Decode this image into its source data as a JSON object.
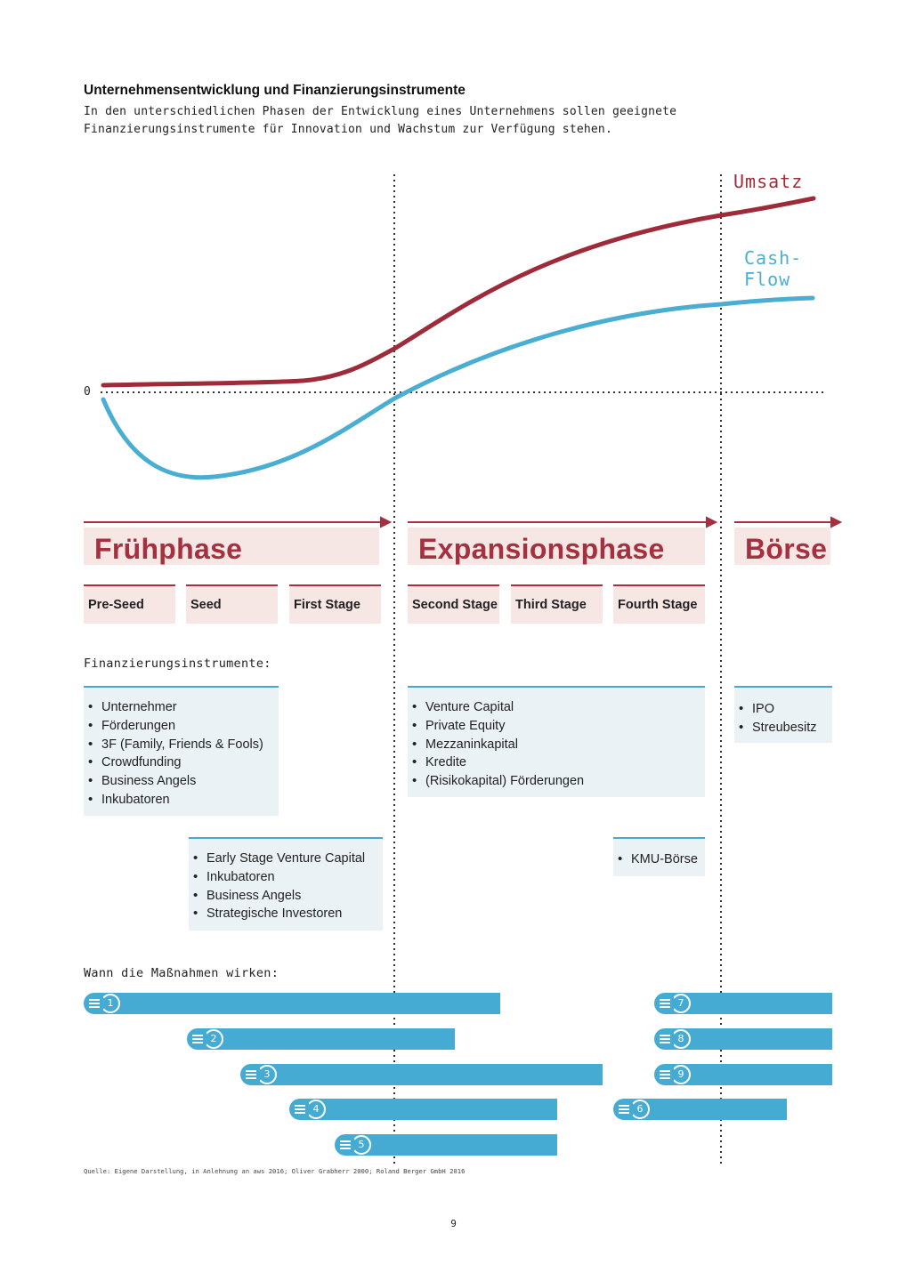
{
  "header": {
    "title": "Unternehmensentwicklung und Finanzierungsinstrumente",
    "subtitle": "In den unterschiedlichen Phasen der Entwicklung eines Unternehmens sollen geeignete Finanzierungsinstrumente für Innovation und Wachstum zur Verfügung stehen."
  },
  "chart": {
    "zero_label": "0",
    "umsatz_label": "Umsatz",
    "cashflow_label": "Cash-\nFlow",
    "umsatz_color": "#9e2b3a",
    "cashflow_color": "#4aaed3"
  },
  "phases": {
    "fruehphase": "Frühphase",
    "expansion": "Expansionsphase",
    "boerse": "Börse"
  },
  "stages": [
    "Pre-Seed",
    "Seed",
    "First Stage",
    "Second Stage",
    "Third Stage",
    "Fourth Stage"
  ],
  "instruments_label": "Finanzierungsinstrumente:",
  "boxes": {
    "early": [
      "Unternehmer",
      "Förderungen",
      "3F (Family, Friends & Fools)",
      "Crowdfunding",
      "Business Angels",
      "Inkubatoren"
    ],
    "expansion": [
      "Venture Capital",
      "Private Equity",
      "Mezzaninkapital",
      "Kredite",
      "(Risikokapital) Förderungen"
    ],
    "boerse": [
      "IPO",
      "Streubesitz"
    ],
    "early_stage": [
      "Early Stage Venture Capital",
      "Inkubatoren",
      "Business Angels",
      "Strategische Investoren"
    ],
    "kmu": [
      "KMU-Börse"
    ]
  },
  "measures_label": "Wann die Maßnahmen wirken:",
  "measures": [
    "1",
    "2",
    "3",
    "4",
    "5",
    "6",
    "7",
    "8",
    "9"
  ],
  "footer": {
    "source": "Quelle: Eigene Darstellung, in Anlehnung an aws 2016; Oliver Grabherr 2000; Roland Berger GmbH 2016",
    "page": "9"
  },
  "colors": {
    "accent_red": "#a43040",
    "phase_bg": "#f6e7e5",
    "accent_blue": "#45abd3",
    "box_bg": "#ebf2f6"
  }
}
